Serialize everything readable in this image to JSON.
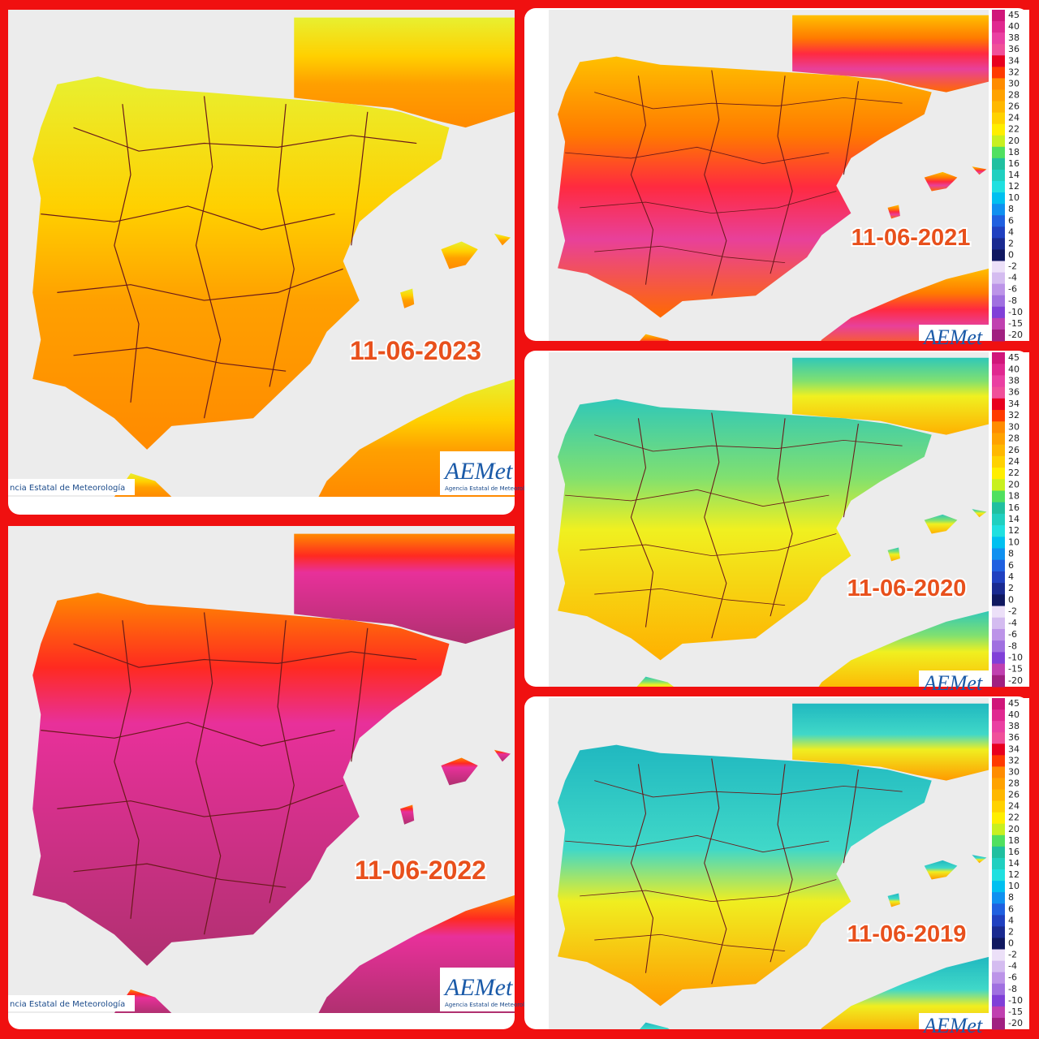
{
  "panels": [
    {
      "date": "11-06-2023",
      "credit": "ncia Estatal de Meteorología",
      "logo": "AEMet",
      "logo_subtitle": "Agencia Estatal de Meteorología"
    },
    {
      "date": "11-06-2022",
      "credit": "ncia Estatal de Meteorología",
      "logo": "AEMet",
      "logo_subtitle": "Agencia Estatal de Meteorología"
    },
    {
      "date": "11-06-2021",
      "logo": "AEMet"
    },
    {
      "date": "11-06-2020",
      "logo": "AEMet"
    },
    {
      "date": "11-06-2019",
      "logo": "AEMet"
    }
  ],
  "color_scale": [
    {
      "label": "45",
      "color": "#d0167a"
    },
    {
      "label": "40",
      "color": "#e02890"
    },
    {
      "label": "38",
      "color": "#ea40a2"
    },
    {
      "label": "36",
      "color": "#f0509a"
    },
    {
      "label": "34",
      "color": "#e8001e"
    },
    {
      "label": "32",
      "color": "#ff3a00"
    },
    {
      "label": "30",
      "color": "#ff8c00"
    },
    {
      "label": "28",
      "color": "#ffa200"
    },
    {
      "label": "26",
      "color": "#ffb800"
    },
    {
      "label": "24",
      "color": "#ffd200"
    },
    {
      "label": "22",
      "color": "#ffee00"
    },
    {
      "label": "20",
      "color": "#c8f020"
    },
    {
      "label": "18",
      "color": "#50e060"
    },
    {
      "label": "16",
      "color": "#20c0a0"
    },
    {
      "label": "14",
      "color": "#20d0c0"
    },
    {
      "label": "12",
      "color": "#20e0e0"
    },
    {
      "label": "10",
      "color": "#00c0f0"
    },
    {
      "label": "8",
      "color": "#1090f0"
    },
    {
      "label": "6",
      "color": "#2060e0"
    },
    {
      "label": "4",
      "color": "#2040c0"
    },
    {
      "label": "2",
      "color": "#1a2a90"
    },
    {
      "label": "0",
      "color": "#101860"
    },
    {
      "label": "-2",
      "color": "#ece0f8"
    },
    {
      "label": "-4",
      "color": "#d4bcf0"
    },
    {
      "label": "-6",
      "color": "#bc94e8"
    },
    {
      "label": "-8",
      "color": "#a070e0"
    },
    {
      "label": "-10",
      "color": "#8040d8"
    },
    {
      "label": "-15",
      "color": "#c040b0"
    },
    {
      "label": "-20",
      "color": "#a02080"
    }
  ]
}
